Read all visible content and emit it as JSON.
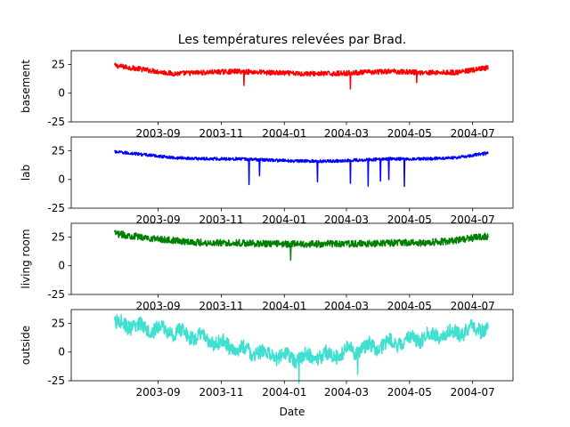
{
  "chart_data": {
    "type": "line",
    "title": "Les températures relevées par Brad.",
    "xlabel": "Date",
    "x_tick_labels": [
      "2003-09",
      "2003-11",
      "2004-01",
      "2004-03",
      "2004-05",
      "2004-07"
    ],
    "x_ticks": [
      "2003-09-01",
      "2003-11-01",
      "2004-01-01",
      "2004-03-01",
      "2004-05-01",
      "2004-07-01"
    ],
    "xlim": [
      "2003-06-09",
      "2004-08-09"
    ],
    "data_range": [
      "2003-07-21",
      "2004-07-16"
    ],
    "ylim": [
      -25,
      37
    ],
    "y_ticks": [
      -25,
      0,
      25
    ],
    "grid": false,
    "panels": [
      {
        "ylabel": "basement",
        "color": "#ff0000",
        "series": {
          "name": "basement",
          "x": [
            "2003-07-21",
            "2003-08-15",
            "2003-09-15",
            "2003-10-15",
            "2003-11-15",
            "2003-12-15",
            "2004-01-15",
            "2004-02-15",
            "2004-03-15",
            "2004-04-15",
            "2004-05-15",
            "2004-06-15",
            "2004-07-16"
          ],
          "values": [
            24,
            21,
            17,
            18,
            19,
            18,
            17,
            17,
            18,
            19,
            18,
            18,
            22
          ]
        }
      },
      {
        "ylabel": "lab",
        "color": "#0000ff",
        "series": {
          "name": "lab",
          "x": [
            "2003-07-21",
            "2003-08-15",
            "2003-09-15",
            "2003-10-15",
            "2003-11-15",
            "2003-12-15",
            "2004-01-15",
            "2004-02-15",
            "2004-03-15",
            "2004-04-15",
            "2004-05-15",
            "2004-06-15",
            "2004-07-16"
          ],
          "values": [
            24,
            22,
            19,
            18,
            18,
            17,
            16,
            16,
            17,
            18,
            18,
            19,
            23
          ]
        }
      },
      {
        "ylabel": "living room",
        "color": "#008000",
        "series": {
          "name": "living room",
          "x": [
            "2003-07-21",
            "2003-08-15",
            "2003-09-15",
            "2003-10-15",
            "2003-11-15",
            "2003-12-15",
            "2004-01-15",
            "2004-02-15",
            "2004-03-15",
            "2004-04-15",
            "2004-05-15",
            "2004-06-15",
            "2004-07-16"
          ],
          "values": [
            28,
            25,
            22,
            20,
            20,
            19,
            19,
            19,
            19,
            20,
            20,
            22,
            26
          ]
        }
      },
      {
        "ylabel": "outside",
        "color": "#40e0d0",
        "series": {
          "name": "outside",
          "x": [
            "2003-07-21",
            "2003-08-15",
            "2003-09-15",
            "2003-10-15",
            "2003-11-15",
            "2003-12-15",
            "2004-01-15",
            "2004-02-15",
            "2004-03-15",
            "2004-04-15",
            "2004-05-15",
            "2004-06-15",
            "2004-07-16"
          ],
          "values": [
            25,
            22,
            18,
            12,
            3,
            -2,
            -5,
            -3,
            3,
            8,
            13,
            17,
            22
          ]
        }
      }
    ]
  }
}
